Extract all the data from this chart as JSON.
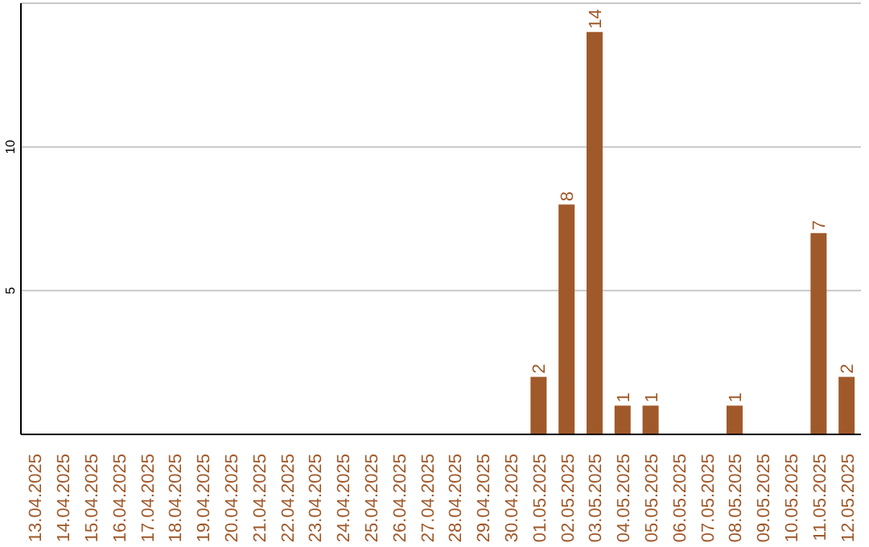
{
  "chart_data": {
    "type": "bar",
    "categories": [
      "13.04.2025",
      "14.04.2025",
      "15.04.2025",
      "16.04.2025",
      "17.04.2025",
      "18.04.2025",
      "19.04.2025",
      "20.04.2025",
      "21.04.2025",
      "22.04.2025",
      "23.04.2025",
      "24.04.2025",
      "25.04.2025",
      "26.04.2025",
      "27.04.2025",
      "28.04.2025",
      "29.04.2025",
      "30.04.2025",
      "01.05.2025",
      "02.05.2025",
      "03.05.2025",
      "04.05.2025",
      "05.05.2025",
      "06.05.2025",
      "07.05.2025",
      "08.05.2025",
      "09.05.2025",
      "10.05.2025",
      "11.05.2025",
      "12.05.2025"
    ],
    "values": [
      0,
      0,
      0,
      0,
      0,
      0,
      0,
      0,
      0,
      0,
      0,
      0,
      0,
      0,
      0,
      0,
      0,
      0,
      2,
      8,
      14,
      1,
      1,
      0,
      0,
      1,
      0,
      0,
      7,
      2
    ],
    "value_labels": [
      null,
      null,
      null,
      null,
      null,
      null,
      null,
      null,
      null,
      null,
      null,
      null,
      null,
      null,
      null,
      null,
      null,
      null,
      "2",
      "8",
      "14",
      "1",
      "1",
      null,
      null,
      "1",
      null,
      null,
      "7",
      "2"
    ],
    "color": "#a0592a",
    "ylim": [
      0,
      15
    ],
    "yticks": [
      5,
      10
    ],
    "grid": "y"
  }
}
